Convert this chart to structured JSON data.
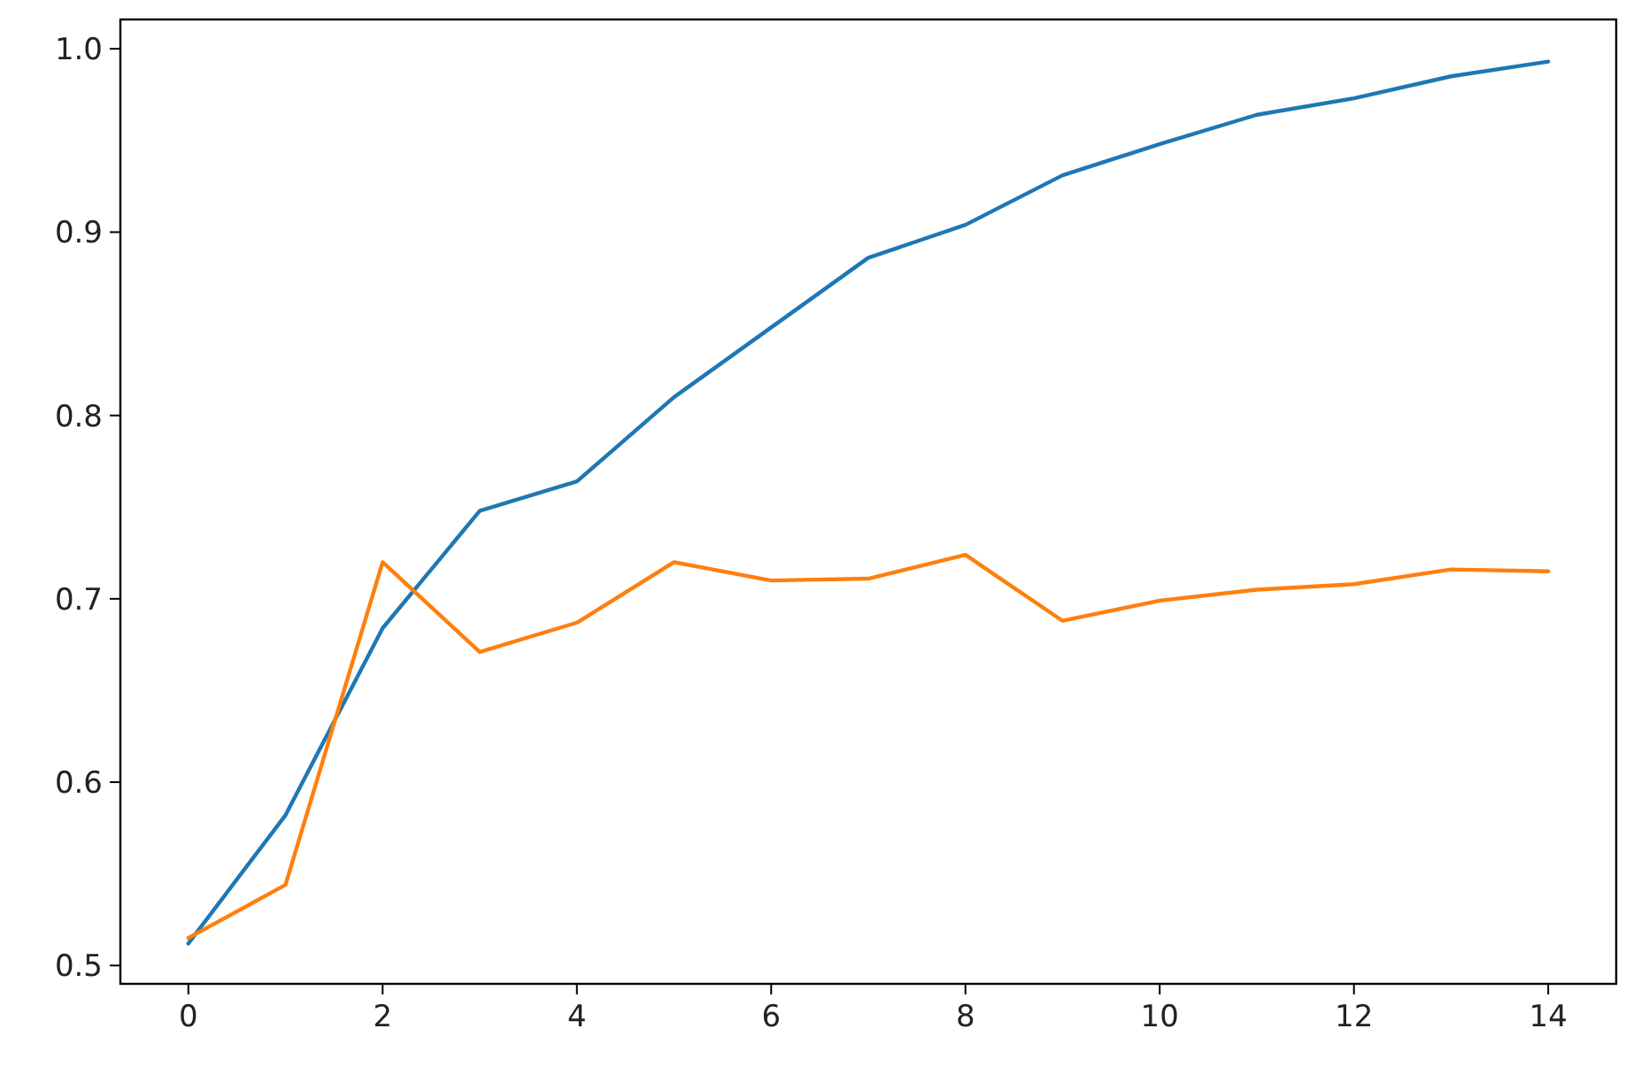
{
  "chart_data": {
    "type": "line",
    "x": [
      0,
      1,
      2,
      3,
      4,
      5,
      6,
      7,
      8,
      9,
      10,
      11,
      12,
      13,
      14
    ],
    "series": [
      {
        "color": "#1f77b4",
        "values": [
          0.512,
          0.582,
          0.684,
          0.748,
          0.764,
          0.81,
          0.848,
          0.886,
          0.904,
          0.931,
          0.948,
          0.964,
          0.973,
          0.985,
          0.993
        ]
      },
      {
        "color": "#ff7f0e",
        "values": [
          0.515,
          0.544,
          0.72,
          0.671,
          0.687,
          0.72,
          0.71,
          0.711,
          0.724,
          0.688,
          0.699,
          0.705,
          0.708,
          0.716,
          0.715
        ]
      }
    ],
    "xlim": [
      -0.7,
      14.7
    ],
    "ylim": [
      0.49,
      1.016
    ],
    "xticks": [
      0,
      2,
      4,
      6,
      8,
      10,
      12,
      14
    ],
    "yticks": [
      {
        "value": 0.5,
        "label": "0.5"
      },
      {
        "value": 0.6,
        "label": "0.6"
      },
      {
        "value": 0.7,
        "label": "0.7"
      },
      {
        "value": 0.8,
        "label": "0.8"
      },
      {
        "value": 0.9,
        "label": "0.9"
      },
      {
        "value": 1.0,
        "label": "1.0"
      }
    ]
  }
}
